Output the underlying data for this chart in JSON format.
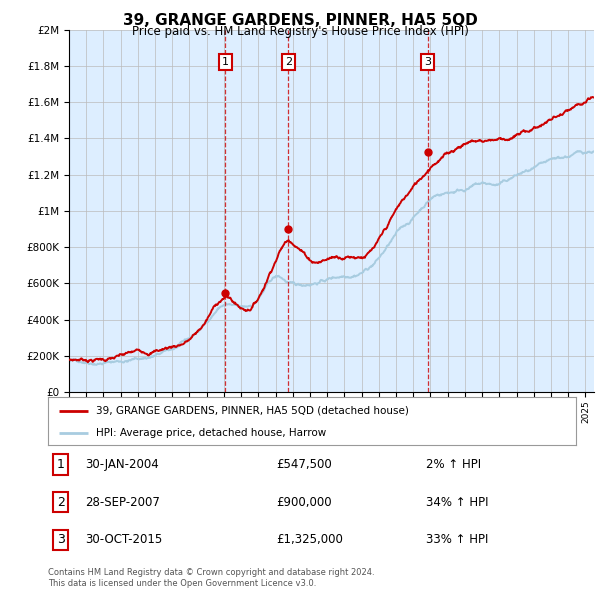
{
  "title": "39, GRANGE GARDENS, PINNER, HA5 5QD",
  "subtitle": "Price paid vs. HM Land Registry's House Price Index (HPI)",
  "legend_line1": "39, GRANGE GARDENS, PINNER, HA5 5QD (detached house)",
  "legend_line2": "HPI: Average price, detached house, Harrow",
  "footnote1": "Contains HM Land Registry data © Crown copyright and database right 2024.",
  "footnote2": "This data is licensed under the Open Government Licence v3.0.",
  "sales": [
    {
      "num": 1,
      "date": "30-JAN-2004",
      "price": "£547,500",
      "change": "2% ↑ HPI",
      "year": 2004.08
    },
    {
      "num": 2,
      "date": "28-SEP-2007",
      "price": "£900,000",
      "change": "34% ↑ HPI",
      "year": 2007.75
    },
    {
      "num": 3,
      "date": "30-OCT-2015",
      "price": "£1,325,000",
      "change": "33% ↑ HPI",
      "year": 2015.83
    }
  ],
  "sale_values": [
    547500,
    900000,
    1325000
  ],
  "sale_years": [
    2004.08,
    2007.75,
    2015.83
  ],
  "hpi_color": "#a8cce0",
  "price_color": "#cc0000",
  "background_color": "#ddeeff",
  "ylim": [
    0,
    2000000
  ],
  "xlim_start": 1995,
  "xlim_end": 2025.5,
  "prop_kx": [
    1995,
    1997,
    1999,
    2001,
    2003,
    2004.08,
    2005,
    2006,
    2007.75,
    2009,
    2010,
    2011,
    2012,
    2013,
    2014,
    2015.83,
    2016,
    2017,
    2018,
    2019,
    2020,
    2021,
    2022,
    2023,
    2024,
    2025,
    2025.5
  ],
  "prop_ky": [
    175000,
    195000,
    220000,
    270000,
    420000,
    547500,
    490000,
    560000,
    900000,
    820000,
    830000,
    860000,
    880000,
    950000,
    1100000,
    1325000,
    1350000,
    1430000,
    1500000,
    1520000,
    1540000,
    1560000,
    1600000,
    1650000,
    1680000,
    1700000,
    1710000
  ],
  "hpi_kx": [
    1995,
    1997,
    1999,
    2001,
    2003,
    2004,
    2005,
    2006,
    2007,
    2008,
    2009,
    2010,
    2011,
    2012,
    2013,
    2014,
    2015,
    2016,
    2017,
    2018,
    2019,
    2020,
    2021,
    2022,
    2023,
    2024,
    2025,
    2025.5
  ],
  "hpi_ky": [
    170000,
    185000,
    210000,
    255000,
    390000,
    490000,
    460000,
    510000,
    620000,
    570000,
    580000,
    610000,
    640000,
    680000,
    760000,
    880000,
    970000,
    1080000,
    1120000,
    1150000,
    1170000,
    1160000,
    1200000,
    1220000,
    1230000,
    1250000,
    1270000,
    1280000
  ]
}
